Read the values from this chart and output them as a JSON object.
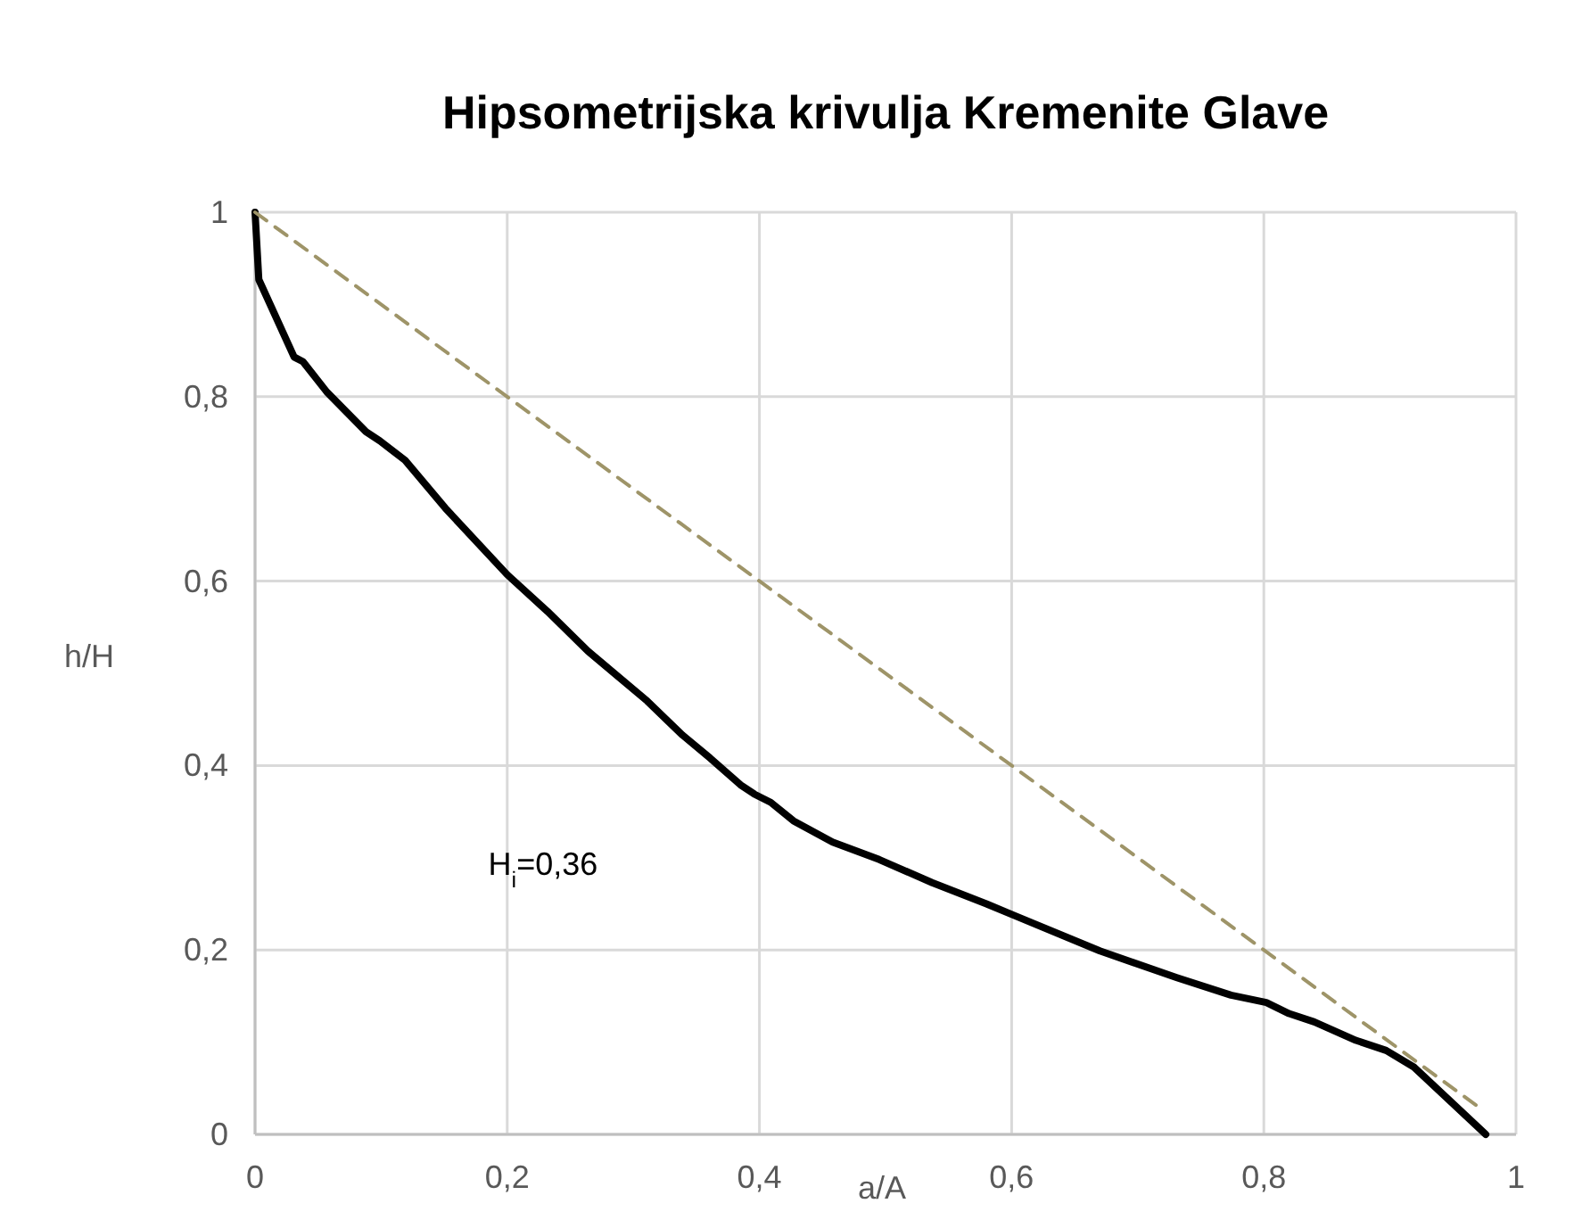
{
  "chart_data": {
    "type": "line",
    "title": "Hipsometrijska krivulja Kremenite Glave",
    "xlabel": "a/A",
    "ylabel": "h/H",
    "xlim": [
      0,
      1
    ],
    "ylim": [
      0,
      1
    ],
    "xticks": [
      0,
      {
        "value": 0.2,
        "label": "0,2"
      },
      {
        "value": 0.4,
        "label": "0,4"
      },
      {
        "value": 0.6,
        "label": "0,6"
      },
      {
        "value": 0.8,
        "label": "0,8"
      },
      1
    ],
    "yticks": [
      0,
      {
        "value": 0.2,
        "label": "0,2"
      },
      {
        "value": 0.4,
        "label": "0,4"
      },
      {
        "value": 0.6,
        "label": "0,6"
      },
      {
        "value": 0.8,
        "label": "0,8"
      },
      1
    ],
    "grid": true,
    "marker": "none",
    "series": [
      {
        "color": "#000000",
        "line_style": "solid",
        "x": [
          0,
          0.003,
          0.013,
          0.031,
          0.038,
          0.057,
          0.088,
          0.099,
          0.119,
          0.151,
          0.2,
          0.232,
          0.264,
          0.311,
          0.339,
          0.361,
          0.385,
          0.396,
          0.409,
          0.427,
          0.458,
          0.495,
          0.537,
          0.58,
          0.601,
          0.67,
          0.731,
          0.774,
          0.802,
          0.82,
          0.84,
          0.873,
          0.897,
          0.919,
          0.976
        ],
        "values": [
          1,
          0.927,
          0.897,
          0.843,
          0.838,
          0.805,
          0.762,
          0.752,
          0.731,
          0.679,
          0.607,
          0.567,
          0.524,
          0.47,
          0.433,
          0.408,
          0.379,
          0.369,
          0.36,
          0.34,
          0.317,
          0.298,
          0.273,
          0.25,
          0.238,
          0.199,
          0.17,
          0.151,
          0.143,
          0.131,
          0.122,
          0.102,
          0.091,
          0.073,
          0
        ]
      },
      {
        "color": "#9e9468",
        "line_style": "dashed",
        "x": [
          0,
          0.975
        ],
        "values": [
          1,
          0.025
        ]
      }
    ],
    "annotations": [
      "H$_{i}$=0,36"
    ]
  }
}
